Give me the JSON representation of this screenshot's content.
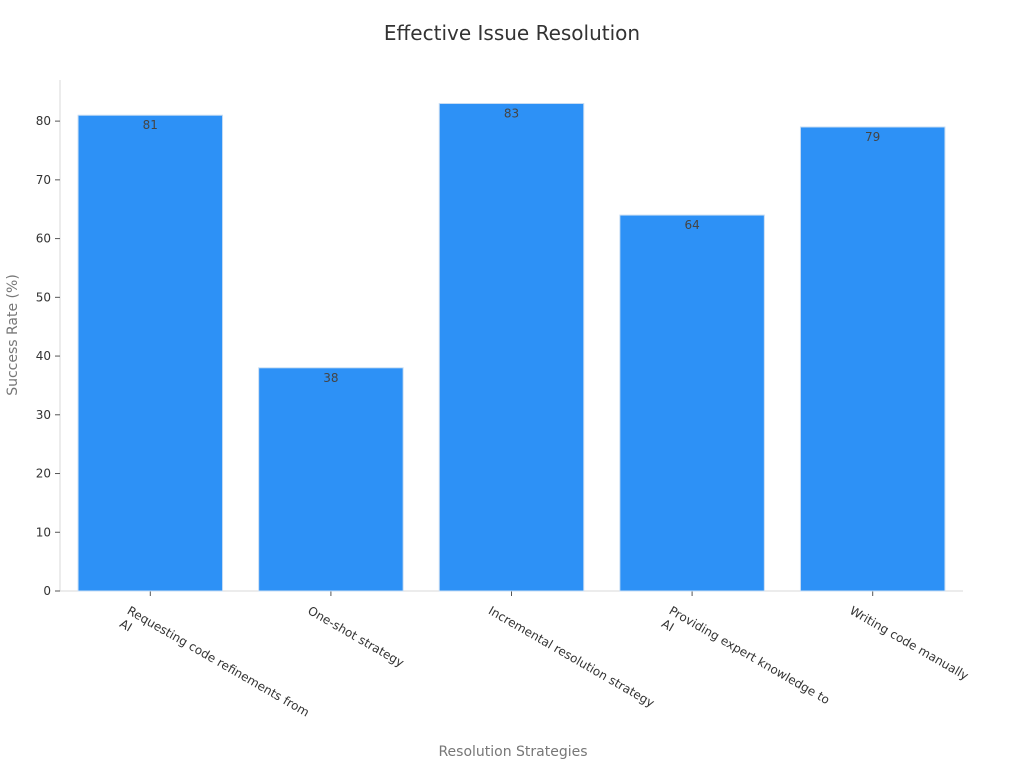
{
  "chart_data": {
    "type": "bar",
    "title": "Effective Issue Resolution",
    "xlabel": "Resolution Strategies",
    "ylabel": "Success Rate (%)",
    "categories": [
      [
        "Requesting code refinements from",
        "AI"
      ],
      [
        "One-shot strategy"
      ],
      [
        "Incremental resolution strategy"
      ],
      [
        "Providing expert knowledge to",
        "AI"
      ],
      [
        "Writing code manually"
      ]
    ],
    "values": [
      81,
      38,
      83,
      64,
      79
    ],
    "ylim": [
      0,
      87
    ],
    "yticks": [
      0,
      10,
      20,
      30,
      40,
      50,
      60,
      70,
      80
    ],
    "grid": false,
    "legend": "none",
    "colors": {
      "bar": "#2d91f6",
      "bar_edge": "#c8ddf3",
      "axis": "#d9d9d9"
    }
  }
}
